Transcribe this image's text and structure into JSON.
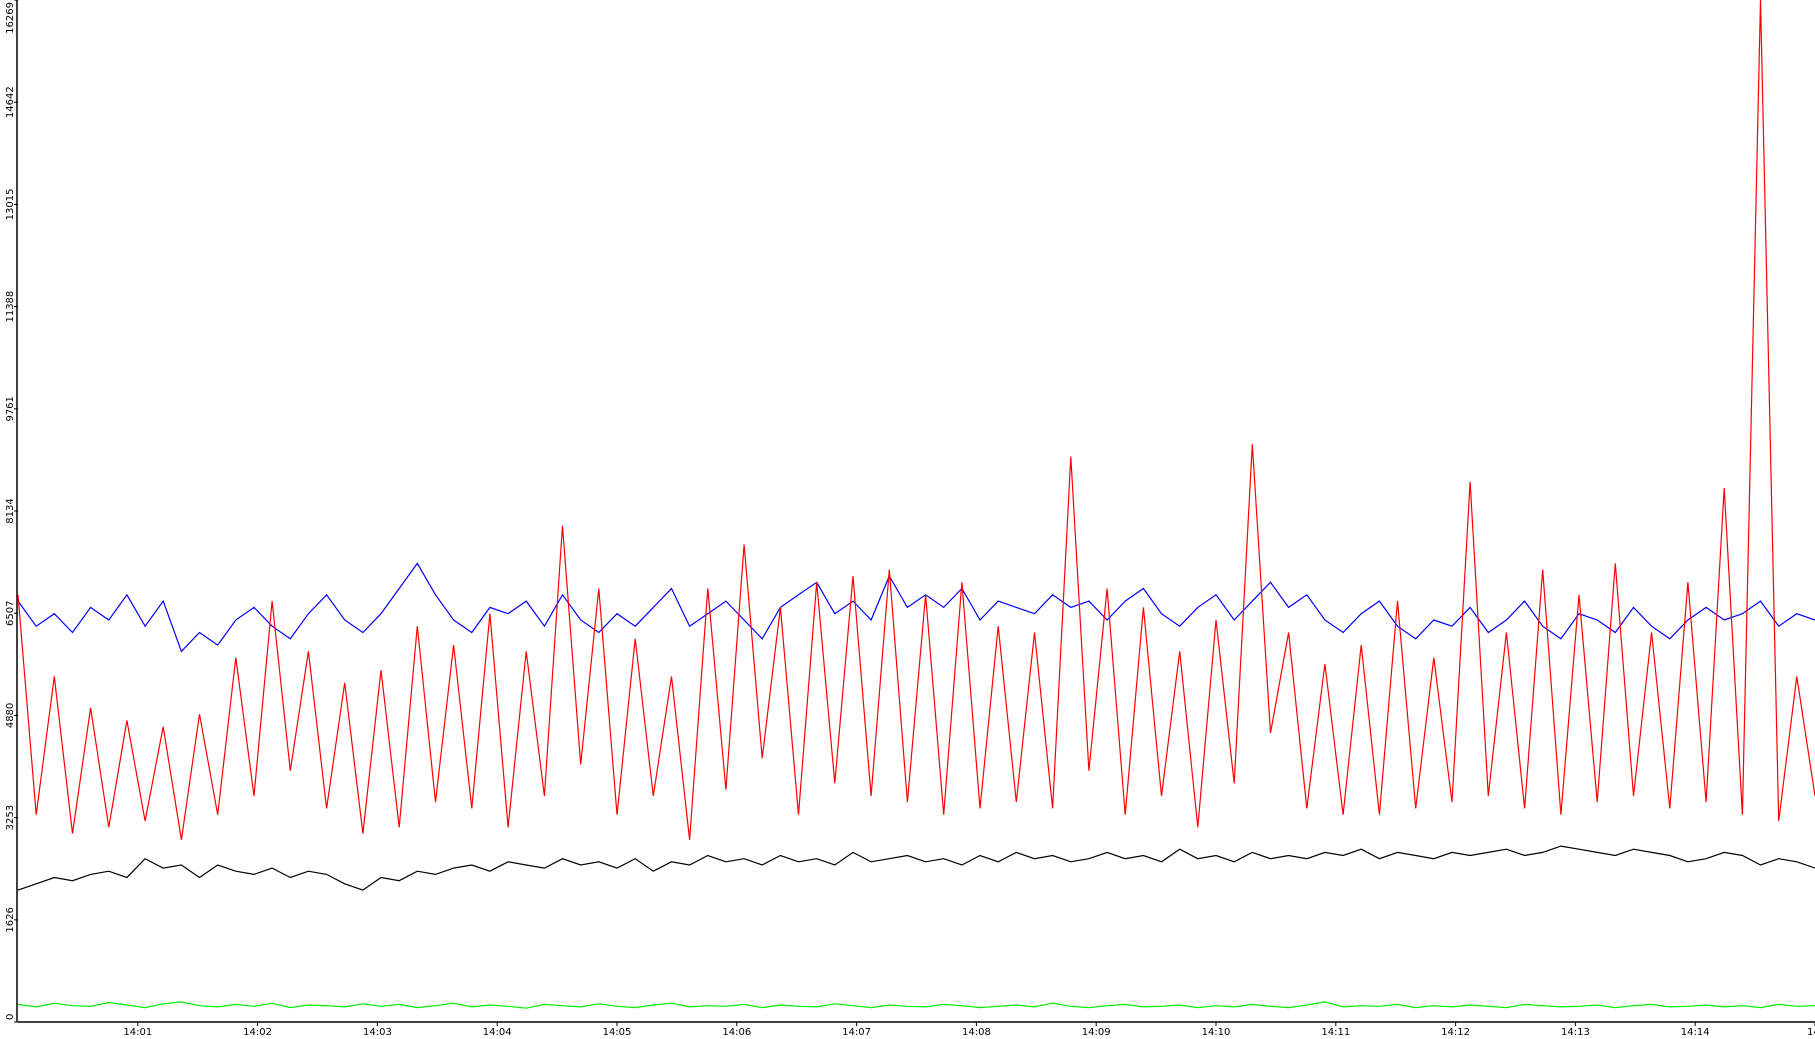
{
  "chart_data": {
    "type": "line",
    "ylim": [
      0,
      16269
    ],
    "yticks": [
      0,
      1626,
      3253,
      4880,
      6507,
      8134,
      9761,
      11388,
      13015,
      14642,
      16269
    ],
    "xticks": [
      "14:01",
      "14:02",
      "14:03",
      "14:04",
      "14:05",
      "14:06",
      "14:07",
      "14:08",
      "14:09",
      "14:10",
      "14:11",
      "14:12",
      "14:13",
      "14:14",
      "14:"
    ],
    "series": [
      {
        "color": "#ff0000",
        "values": [
          6800,
          3300,
          5500,
          3000,
          5000,
          3100,
          4800,
          3200,
          4700,
          2900,
          4900,
          3300,
          5800,
          3600,
          6700,
          4000,
          5900,
          3400,
          5400,
          3000,
          5600,
          3100,
          6300,
          3500,
          6000,
          3400,
          6500,
          3100,
          5900,
          3600,
          7900,
          4100,
          6900,
          3300,
          6100,
          3600,
          5500,
          2900,
          6900,
          3700,
          7600,
          4200,
          6600,
          3300,
          7000,
          3800,
          7100,
          3600,
          7200,
          3500,
          6800,
          3300,
          7000,
          3400,
          6300,
          3500,
          6200,
          3400,
          9000,
          4000,
          6900,
          3300,
          6600,
          3600,
          5900,
          3100,
          6400,
          3800,
          9200,
          4600,
          6200,
          3400,
          5700,
          3300,
          6000,
          3300,
          6700,
          3400,
          5800,
          3500,
          8600,
          3600,
          6200,
          3400,
          7200,
          3300,
          6800,
          3500,
          7300,
          3600,
          6200,
          3400,
          7000,
          3500,
          8500,
          3300,
          16269,
          3200,
          5500,
          3600
        ]
      },
      {
        "color": "#0000ff",
        "values": [
          6700,
          6300,
          6500,
          6200,
          6600,
          6400,
          6800,
          6300,
          6700,
          5900,
          6200,
          6000,
          6400,
          6600,
          6300,
          6100,
          6500,
          6800,
          6400,
          6200,
          6500,
          6900,
          7300,
          6800,
          6400,
          6200,
          6600,
          6500,
          6700,
          6300,
          6800,
          6400,
          6200,
          6500,
          6300,
          6600,
          6900,
          6300,
          6500,
          6700,
          6400,
          6100,
          6600,
          6800,
          7000,
          6500,
          6700,
          6400,
          7100,
          6600,
          6800,
          6600,
          6900,
          6400,
          6700,
          6600,
          6500,
          6800,
          6600,
          6700,
          6400,
          6700,
          6900,
          6500,
          6300,
          6600,
          6800,
          6400,
          6700,
          7000,
          6600,
          6800,
          6400,
          6200,
          6500,
          6700,
          6300,
          6100,
          6400,
          6300,
          6600,
          6200,
          6400,
          6700,
          6300,
          6100,
          6500,
          6400,
          6200,
          6600,
          6300,
          6100,
          6400,
          6600,
          6400,
          6500,
          6700,
          6300,
          6500,
          6400
        ]
      },
      {
        "color": "#000000",
        "values": [
          2100,
          2200,
          2300,
          2250,
          2350,
          2400,
          2300,
          2600,
          2450,
          2500,
          2300,
          2500,
          2400,
          2350,
          2450,
          2300,
          2400,
          2350,
          2200,
          2100,
          2300,
          2250,
          2400,
          2350,
          2450,
          2500,
          2400,
          2550,
          2500,
          2450,
          2600,
          2500,
          2550,
          2450,
          2600,
          2400,
          2550,
          2500,
          2650,
          2550,
          2600,
          2500,
          2650,
          2550,
          2600,
          2500,
          2700,
          2550,
          2600,
          2650,
          2550,
          2600,
          2500,
          2650,
          2550,
          2700,
          2600,
          2650,
          2550,
          2600,
          2700,
          2600,
          2650,
          2550,
          2750,
          2600,
          2650,
          2550,
          2700,
          2600,
          2650,
          2600,
          2700,
          2650,
          2750,
          2600,
          2700,
          2650,
          2600,
          2700,
          2650,
          2700,
          2750,
          2650,
          2700,
          2800,
          2750,
          2700,
          2650,
          2750,
          2700,
          2650,
          2550,
          2600,
          2700,
          2650,
          2500,
          2600,
          2550,
          2450
        ]
      },
      {
        "color": "#00ee00",
        "values": [
          280,
          240,
          300,
          260,
          250,
          310,
          270,
          230,
          290,
          320,
          260,
          240,
          280,
          250,
          300,
          230,
          270,
          260,
          240,
          290,
          250,
          280,
          230,
          260,
          300,
          240,
          270,
          250,
          220,
          280,
          260,
          240,
          290,
          250,
          230,
          270,
          300,
          240,
          260,
          250,
          280,
          230,
          270,
          250,
          240,
          290,
          260,
          230,
          270,
          250,
          240,
          280,
          260,
          230,
          250,
          270,
          240,
          300,
          250,
          230,
          260,
          280,
          240,
          250,
          270,
          230,
          260,
          240,
          280,
          250,
          230,
          270,
          320,
          240,
          260,
          250,
          280,
          230,
          260,
          240,
          270,
          250,
          230,
          280,
          260,
          240,
          250,
          270,
          230,
          260,
          280,
          240,
          250,
          270,
          240,
          260,
          230,
          280,
          250,
          260
        ]
      }
    ]
  }
}
